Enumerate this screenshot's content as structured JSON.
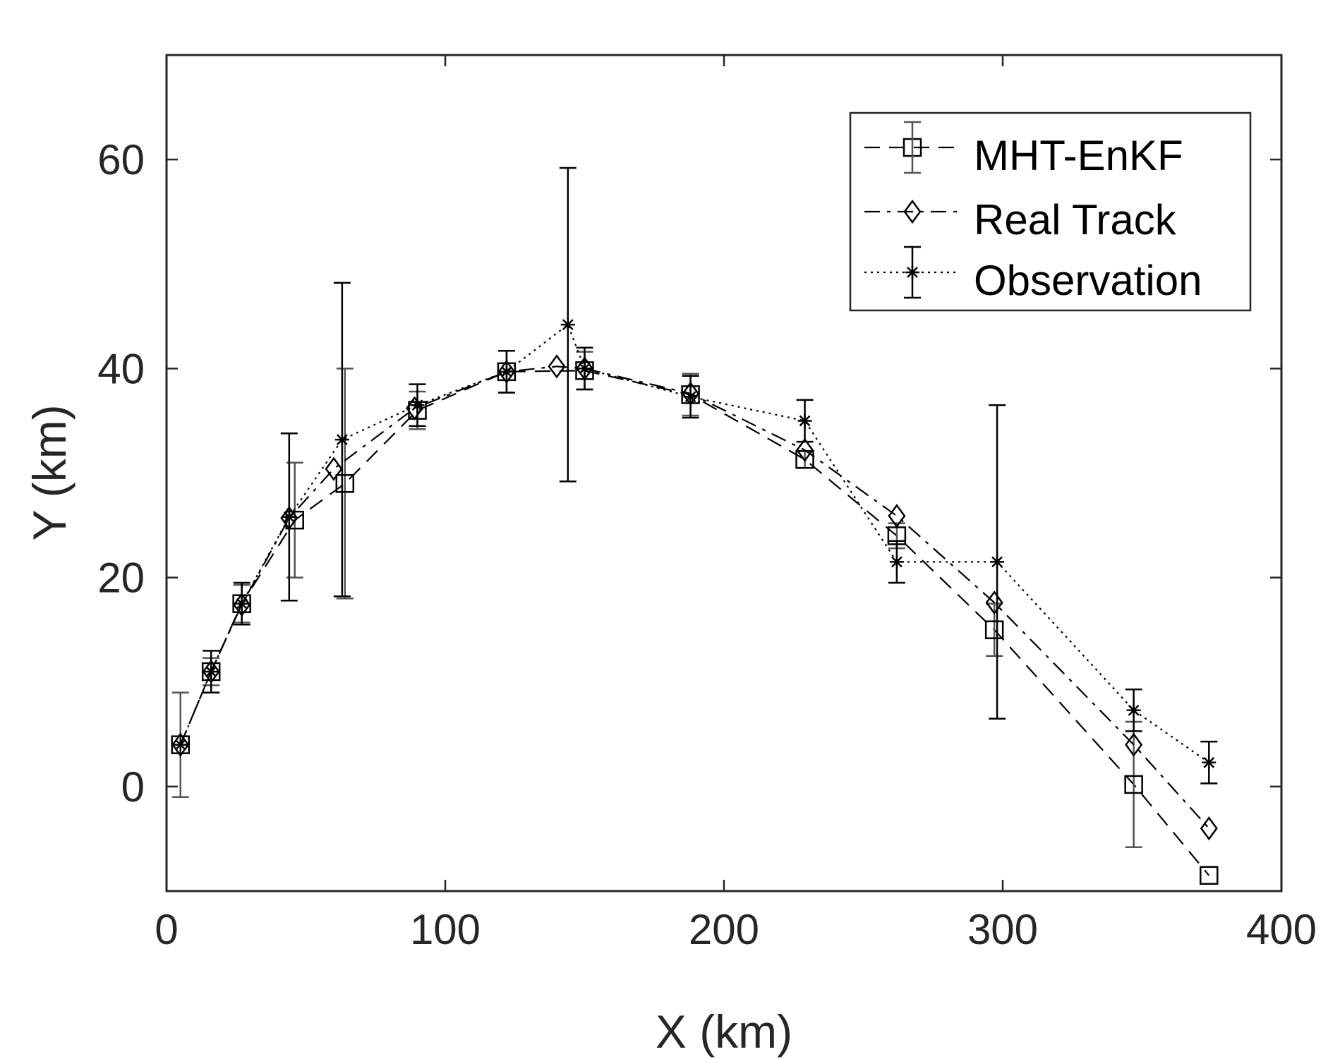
{
  "chart_data": {
    "type": "line",
    "title": "",
    "xlabel": "X (km)",
    "ylabel": "Y (km)",
    "xlim": [
      0,
      400
    ],
    "ylim": [
      -10,
      70
    ],
    "xticks": [
      0,
      100,
      200,
      300,
      400
    ],
    "yticks": [
      0,
      20,
      40,
      60
    ],
    "grid": false,
    "legend_position": "top-right",
    "series": [
      {
        "name": "MHT-EnKF",
        "line_style": "dashed",
        "marker": "square",
        "color": "#000000",
        "error_color": "#555555",
        "x": [
          5,
          16,
          27,
          46,
          64,
          90,
          122,
          150,
          188,
          229,
          262,
          297,
          347,
          374
        ],
        "y": [
          4,
          11,
          17.5,
          25.5,
          29,
          36,
          39.7,
          39.8,
          37.5,
          31.3,
          24,
          15,
          0.2,
          -8.5
        ],
        "err": [
          5,
          1.3,
          1.8,
          5.5,
          11,
          1.8,
          2,
          1.8,
          2,
          0.8,
          1.2,
          2.5,
          6,
          0
        ]
      },
      {
        "name": "Real Track",
        "line_style": "dashdot",
        "marker": "diamond",
        "color": "#000000",
        "x": [
          5,
          16,
          27,
          44,
          60,
          89,
          122,
          140,
          150,
          188,
          229,
          262,
          297,
          347,
          374
        ],
        "y": [
          4,
          11,
          17.4,
          25.7,
          30.4,
          36.2,
          39.7,
          40.2,
          40,
          37.6,
          32.2,
          25.9,
          17.6,
          4,
          -4
        ],
        "err": []
      },
      {
        "name": "Observation",
        "line_style": "dotted",
        "marker": "asterisk",
        "color": "#000000",
        "x": [
          5,
          16,
          27,
          44,
          63,
          90,
          122,
          144,
          150,
          188,
          229,
          262,
          298,
          347,
          374
        ],
        "y": [
          4,
          11,
          17.5,
          25.8,
          33.2,
          36.5,
          39.7,
          44.2,
          40,
          37.3,
          35,
          21.5,
          21.5,
          7.3,
          2.3
        ],
        "err": [
          0,
          2,
          2,
          8,
          15,
          2,
          2,
          15,
          2,
          2,
          2,
          2,
          15,
          2,
          2
        ]
      }
    ]
  }
}
